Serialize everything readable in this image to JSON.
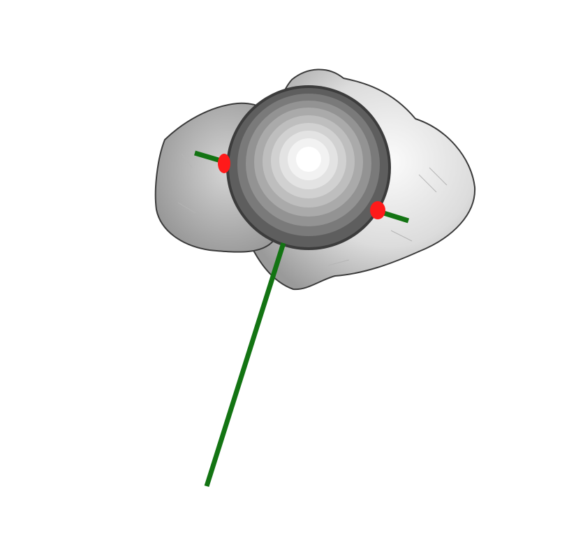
{
  "scene": {
    "background_color": "#ffffff",
    "body_color": "#d9d9d9",
    "body_edge_color": "#3a3a3a",
    "sphere_edge_color": "#3c3c3c",
    "sphere_shades": [
      "#5a5a5a",
      "#7a7a7a",
      "#939393",
      "#a9a9a9",
      "#bdbdbd",
      "#d0d0d0",
      "#e2e2e2",
      "#f2f2f2",
      "#ffffff"
    ],
    "axis_color": "#137413",
    "marker_color": "#ff1a1a"
  }
}
